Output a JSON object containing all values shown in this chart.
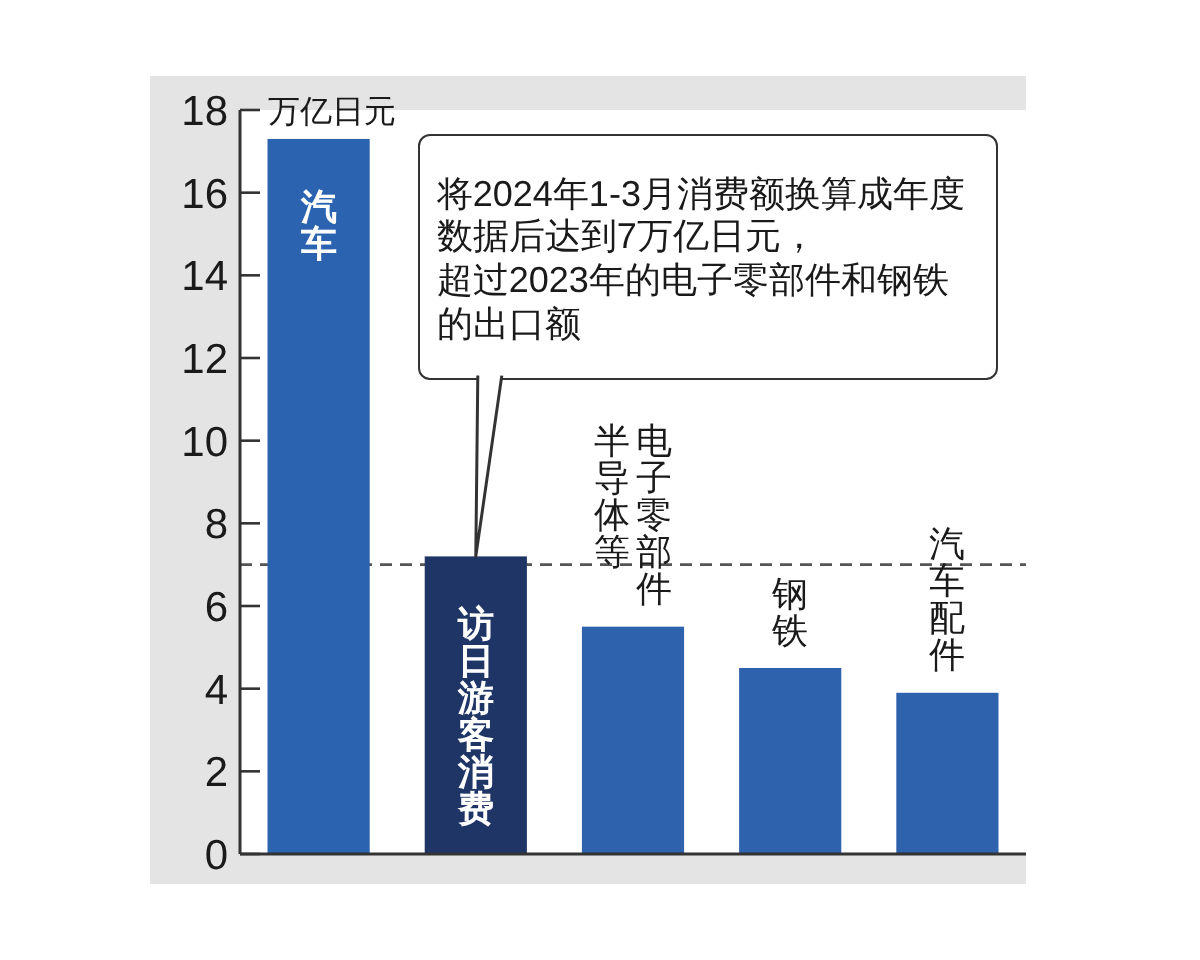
{
  "chart_data": {
    "type": "bar",
    "ylabel": "万亿日元",
    "categories": [
      "汽车",
      "访日游客消费",
      "半导体等电子零部件",
      "钢铁",
      "汽车配件"
    ],
    "values": [
      17.3,
      7.2,
      5.5,
      4.5,
      3.9
    ],
    "colors": [
      "#2b63b0",
      "#1f3566",
      "#2e62ad",
      "#2e62ad",
      "#2e62ad"
    ],
    "ylim": [
      0,
      18
    ],
    "yticks": [
      0,
      2,
      4,
      6,
      8,
      10,
      12,
      14,
      16,
      18
    ],
    "ref_lines": [
      {
        "axis": "y",
        "value": 7,
        "line_style": "dashed",
        "color": "#555555"
      }
    ],
    "annotations": [
      {
        "text": "将2024年1-3月消费额换算成年度数据后达到7万亿日元，超过2023年的电子零部件和钢铁的出口额",
        "x": "访日游客消费",
        "y": 7.2
      }
    ]
  }
}
